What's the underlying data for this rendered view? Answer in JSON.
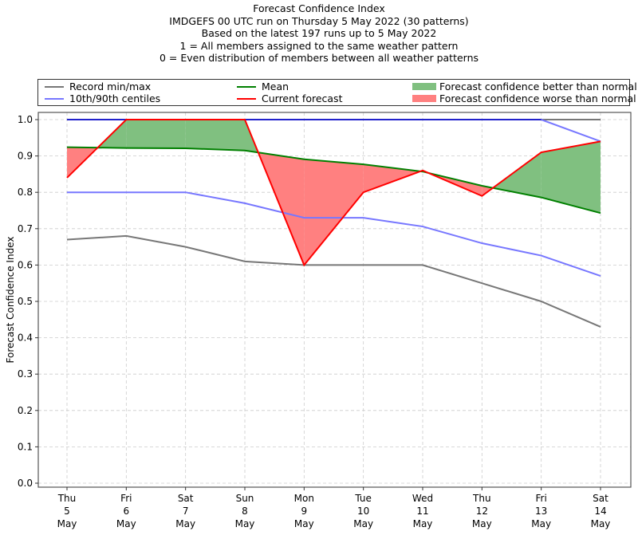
{
  "title_lines": [
    "Forecast Confidence Index",
    "IMDGEFS 00 UTC run on Thursday 5 May 2022 (30 patterns)",
    "Based on the latest 197 runs up to 5 May 2022",
    "1 = All members assigned to the same weather pattern",
    "0 = Even distribution of members between all weather patterns"
  ],
  "legend": {
    "record": "Record min/max",
    "centiles": "10th/90th centiles",
    "mean": "Mean",
    "current": "Current forecast",
    "better": "Forecast confidence better than normal",
    "worse": "Forecast confidence worse than normal"
  },
  "colors": {
    "record": "#777777",
    "centiles": "#7777ff",
    "centile_top": "#2222cc",
    "mean": "#008000",
    "current": "#ff0000",
    "better": "#80c080",
    "worse": "#ff8080"
  },
  "chart_data": {
    "type": "line",
    "title": "Forecast Confidence Index",
    "xlabel": "",
    "ylabel": "Forecast Confidence Index",
    "ylim": [
      0.0,
      1.0
    ],
    "yticks": [
      "0.0",
      "0.1",
      "0.2",
      "0.3",
      "0.4",
      "0.5",
      "0.6",
      "0.7",
      "0.8",
      "0.9",
      "1.0"
    ],
    "grid": true,
    "legend_position": "top",
    "categories": [
      [
        "Thu",
        "5",
        "May"
      ],
      [
        "Fri",
        "6",
        "May"
      ],
      [
        "Sat",
        "7",
        "May"
      ],
      [
        "Sun",
        "8",
        "May"
      ],
      [
        "Mon",
        "9",
        "May"
      ],
      [
        "Tue",
        "10",
        "May"
      ],
      [
        "Wed",
        "11",
        "May"
      ],
      [
        "Thu",
        "12",
        "May"
      ],
      [
        "Fri",
        "13",
        "May"
      ],
      [
        "Sat",
        "14",
        "May"
      ]
    ],
    "series": [
      {
        "name": "Record max",
        "values": [
          1.0,
          1.0,
          1.0,
          1.0,
          1.0,
          1.0,
          1.0,
          1.0,
          1.0,
          1.0
        ]
      },
      {
        "name": "Record min",
        "values": [
          0.67,
          0.68,
          0.65,
          0.61,
          0.6,
          0.6,
          0.6,
          0.55,
          0.5,
          0.43
        ]
      },
      {
        "name": "90th centile",
        "values": [
          1.0,
          1.0,
          1.0,
          1.0,
          1.0,
          1.0,
          1.0,
          1.0,
          1.0,
          0.94
        ]
      },
      {
        "name": "10th centile",
        "values": [
          0.8,
          0.8,
          0.8,
          0.77,
          0.73,
          0.73,
          0.706,
          0.66,
          0.626,
          0.57
        ]
      },
      {
        "name": "Mean",
        "values": [
          0.924,
          0.922,
          0.921,
          0.915,
          0.891,
          0.877,
          0.857,
          0.818,
          0.786,
          0.743
        ]
      },
      {
        "name": "Current forecast",
        "values": [
          0.84,
          1.0,
          1.0,
          1.0,
          0.6,
          0.8,
          0.86,
          0.79,
          0.91,
          0.94
        ]
      }
    ]
  }
}
